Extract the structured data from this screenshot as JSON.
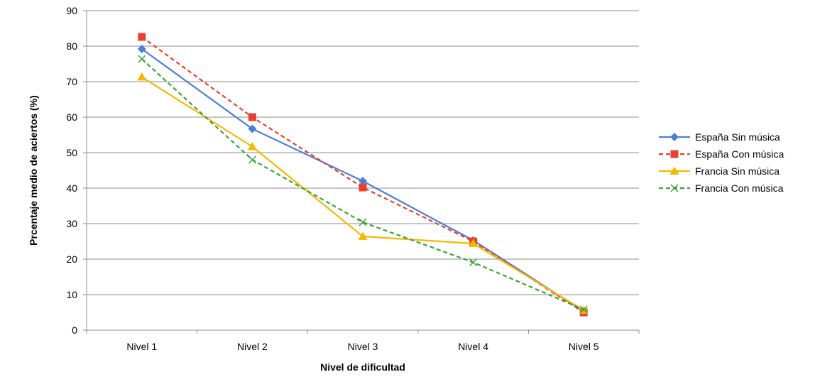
{
  "chart_data": {
    "type": "line",
    "categories": [
      "Nivel 1",
      "Nivel 2",
      "Nivel 3",
      "Nivel 4",
      "Nivel 5"
    ],
    "series": [
      {
        "name": "España Sin música",
        "values": [
          79.2,
          56.7,
          42.0,
          25.3,
          5.3
        ],
        "color": "#4a7fd6",
        "dash": "solid",
        "marker": "diamond"
      },
      {
        "name": "España Con música",
        "values": [
          82.6,
          60.0,
          40.2,
          25.0,
          5.0
        ],
        "color": "#e8412f",
        "dash": "dashed",
        "marker": "square"
      },
      {
        "name": "Francia Sin música",
        "values": [
          71.3,
          51.7,
          26.4,
          24.4,
          5.6
        ],
        "color": "#f5b800",
        "dash": "solid",
        "marker": "triangle"
      },
      {
        "name": "Francia Con música",
        "values": [
          76.4,
          48.0,
          30.4,
          19.1,
          5.8
        ],
        "color": "#3aa33a",
        "dash": "dashed",
        "marker": "x"
      }
    ],
    "xlabel": "Nivel de dificultad",
    "ylabel": "Prcentaje medio  de aciertos (%)",
    "ylim": [
      0,
      90
    ],
    "yticks": [
      0,
      10,
      20,
      30,
      40,
      50,
      60,
      70,
      80,
      90
    ],
    "grid": true,
    "legend_position": "right"
  }
}
